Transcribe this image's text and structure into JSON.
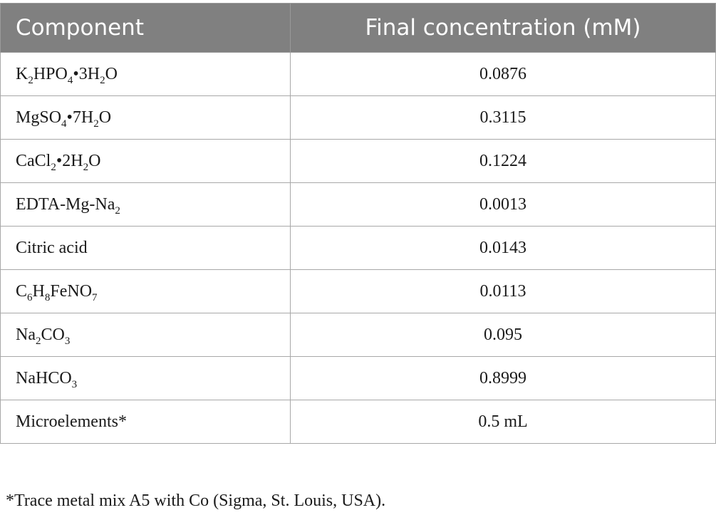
{
  "table": {
    "headers": [
      "Component",
      "Final concentration (mM)"
    ],
    "rows": [
      {
        "component": [
          {
            "t": "K"
          },
          {
            "t": "2",
            "sub": true
          },
          {
            "t": "HPO"
          },
          {
            "t": "4",
            "sub": true
          },
          {
            "t": "•3H"
          },
          {
            "t": "2",
            "sub": true
          },
          {
            "t": "O"
          }
        ],
        "value": "0.0876"
      },
      {
        "component": [
          {
            "t": "MgSO"
          },
          {
            "t": "4",
            "sub": true
          },
          {
            "t": "•7H"
          },
          {
            "t": "2",
            "sub": true
          },
          {
            "t": "O"
          }
        ],
        "value": "0.3115"
      },
      {
        "component": [
          {
            "t": "CaCl"
          },
          {
            "t": "2",
            "sub": true
          },
          {
            "t": "•2H"
          },
          {
            "t": "2",
            "sub": true
          },
          {
            "t": "O"
          }
        ],
        "value": "0.1224"
      },
      {
        "component": [
          {
            "t": "EDTA-Mg-Na"
          },
          {
            "t": "2",
            "sub": true
          }
        ],
        "value": "0.0013"
      },
      {
        "component": [
          {
            "t": "Citric acid"
          }
        ],
        "value": "0.0143"
      },
      {
        "component": [
          {
            "t": "C"
          },
          {
            "t": "6",
            "sub": true
          },
          {
            "t": "H"
          },
          {
            "t": "8",
            "sub": true
          },
          {
            "t": "FeNO"
          },
          {
            "t": "7",
            "sub": true
          }
        ],
        "value": "0.0113"
      },
      {
        "component": [
          {
            "t": "Na"
          },
          {
            "t": "2",
            "sub": true
          },
          {
            "t": "CO"
          },
          {
            "t": "3",
            "sub": true
          }
        ],
        "value": "0.095"
      },
      {
        "component": [
          {
            "t": "NaHCO"
          },
          {
            "t": "3",
            "sub": true
          }
        ],
        "value": "0.8999"
      },
      {
        "component": [
          {
            "t": "Microelements*"
          }
        ],
        "value": "0.5 mL"
      }
    ]
  },
  "footnote": "*Trace metal mix A5 with Co (Sigma, St. Louis, USA)."
}
